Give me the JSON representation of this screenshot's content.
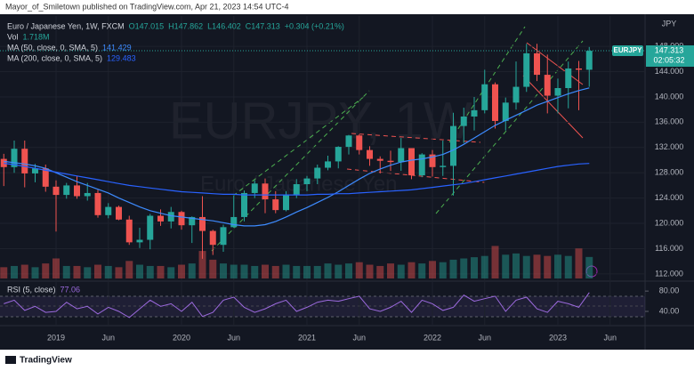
{
  "header": {
    "publisher": "Mayor_of_Smiletown published on TradingView.com, Apr 21, 2023 14:54 UTC-4",
    "brand": "TradingView"
  },
  "chart_data": {
    "type": "candlestick",
    "title": "Euro / Japanese Yen, 1W, FXCM",
    "legend_ohlc": [
      "O147.015",
      "H147.862",
      "L146.402",
      "C147.313",
      "+0.304 (+0.21%)"
    ],
    "watermark": "EURJPY, 1W",
    "watermark_subtitle": "Euro / Japanese Yen",
    "currency": "JPY",
    "symbol_tag": "EURJPY",
    "last_price": 147.313,
    "countdown": "02:05:32",
    "up_color": "#26a69a",
    "down_color": "#ef5350",
    "grid": true,
    "x": [
      "2018-08",
      "2018-09",
      "2018-10",
      "2018-11",
      "2018-12",
      "2019-01",
      "2019-02",
      "2019-03",
      "2019-04",
      "2019-05",
      "2019-06",
      "2019-07",
      "2019-08",
      "2019-09",
      "2019-10",
      "2019-11",
      "2019-12",
      "2020-01",
      "2020-02",
      "2020-03",
      "2020-04",
      "2020-05",
      "2020-06",
      "2020-07",
      "2020-08",
      "2020-09",
      "2020-10",
      "2020-11",
      "2020-12",
      "2021-01",
      "2021-02",
      "2021-03",
      "2021-04",
      "2021-05",
      "2021-06",
      "2021-07",
      "2021-08",
      "2021-09",
      "2021-10",
      "2021-11",
      "2021-12",
      "2022-01",
      "2022-02",
      "2022-03",
      "2022-04",
      "2022-05",
      "2022-06",
      "2022-07",
      "2022-08",
      "2022-09",
      "2022-10",
      "2022-11",
      "2022-12",
      "2023-01",
      "2023-02",
      "2023-03",
      "2023-04"
    ],
    "open": [
      130.2,
      128.9,
      131.8,
      127.9,
      128.7,
      125.8,
      124.5,
      126.0,
      124.3,
      124.8,
      121.3,
      122.6,
      120.6,
      117.0,
      117.4,
      121.2,
      120.3,
      121.8,
      119.7,
      121.0,
      118.8,
      116.6,
      119.4,
      121.0,
      124.8,
      126.3,
      123.8,
      122.1,
      124.5,
      126.2,
      127.1,
      128.8,
      129.8,
      132.1,
      133.9,
      131.6,
      130.2,
      129.9,
      129.7,
      131.9,
      127.6,
      130.9,
      128.9,
      129.1,
      135.4,
      136.9,
      137.9,
      142.0,
      136.2,
      139.1,
      141.6,
      146.9,
      143.5,
      140.2,
      141.4,
      144.5,
      144.3
    ],
    "high": [
      131.0,
      133.1,
      133.1,
      129.4,
      129.3,
      126.8,
      126.4,
      127.5,
      126.4,
      125.3,
      123.2,
      122.8,
      121.2,
      119.3,
      121.5,
      122.2,
      122.6,
      122.0,
      121.1,
      124.3,
      119.0,
      119.8,
      124.4,
      125.2,
      126.8,
      127.1,
      125.1,
      125.1,
      127.0,
      127.5,
      129.3,
      130.7,
      132.2,
      134.0,
      134.1,
      132.2,
      130.6,
      131.5,
      133.5,
      131.9,
      131.1,
      131.6,
      133.1,
      137.5,
      138.3,
      140.0,
      144.3,
      142.3,
      139.9,
      145.6,
      148.4,
      148.4,
      146.7,
      142.9,
      145.6,
      145.7,
      147.9
    ],
    "low": [
      125.9,
      128.0,
      125.7,
      126.5,
      125.0,
      118.7,
      123.9,
      123.9,
      123.6,
      120.9,
      120.8,
      120.5,
      116.6,
      116.1,
      115.9,
      119.6,
      119.2,
      119.0,
      116.9,
      114.4,
      115.0,
      115.5,
      119.3,
      120.3,
      124.0,
      121.6,
      121.6,
      121.9,
      124.0,
      125.1,
      126.2,
      128.4,
      128.7,
      130.9,
      130.9,
      129.1,
      127.9,
      128.3,
      128.3,
      127.0,
      127.3,
      127.4,
      127.5,
      124.4,
      132.7,
      134.7,
      137.4,
      135.0,
      134.7,
      138.0,
      140.8,
      142.5,
      137.4,
      137.4,
      138.2,
      137.9,
      141.6
    ],
    "close": [
      128.9,
      131.8,
      127.9,
      128.7,
      125.8,
      124.5,
      126.0,
      124.3,
      124.8,
      121.3,
      122.6,
      120.6,
      117.0,
      117.4,
      121.2,
      120.3,
      121.8,
      119.7,
      121.0,
      118.8,
      116.6,
      119.4,
      121.0,
      124.8,
      126.3,
      123.8,
      122.1,
      124.5,
      126.2,
      127.1,
      128.8,
      129.8,
      132.1,
      133.9,
      131.6,
      130.2,
      129.9,
      129.7,
      131.9,
      127.6,
      130.9,
      128.9,
      129.1,
      135.4,
      136.9,
      137.9,
      142.0,
      136.2,
      139.1,
      141.6,
      146.9,
      143.5,
      140.2,
      141.4,
      144.5,
      144.3,
      147.3
    ],
    "ylim": [
      111,
      152.8
    ],
    "yticks": [
      {
        "value": 112,
        "label": "112.000"
      },
      {
        "value": 116,
        "label": "116.000"
      },
      {
        "value": 120,
        "label": "120.000"
      },
      {
        "value": 124,
        "label": "124.000"
      },
      {
        "value": 128,
        "label": "128.000"
      },
      {
        "value": 132,
        "label": "132.000"
      },
      {
        "value": 136,
        "label": "136.000"
      },
      {
        "value": 140,
        "label": "140.000"
      },
      {
        "value": 144,
        "label": "144.000"
      },
      {
        "value": 148,
        "label": "148.000"
      }
    ],
    "xticks": [
      {
        "value": "2019-01",
        "label": "2019"
      },
      {
        "value": "2019-06",
        "label": "Jun"
      },
      {
        "value": "2020-01",
        "label": "2020"
      },
      {
        "value": "2020-06",
        "label": "Jun"
      },
      {
        "value": "2021-01",
        "label": "2021"
      },
      {
        "value": "2021-06",
        "label": "Jun"
      },
      {
        "value": "2022-01",
        "label": "2022"
      },
      {
        "value": "2022-06",
        "label": "Jun"
      },
      {
        "value": "2023-01",
        "label": "2023"
      },
      {
        "value": "2023-06",
        "label": "Jun"
      }
    ],
    "overlays": [
      {
        "name": "MA (50, close, 0, SMA, 5)",
        "color": "#3d8bff",
        "values": [
          129.8,
          129.6,
          129.4,
          129.1,
          128.7,
          128.0,
          127.3,
          126.6,
          126.0,
          125.4,
          124.8,
          124.0,
          123.3,
          122.6,
          122.0,
          121.6,
          121.2,
          121.0,
          120.8,
          120.6,
          120.4,
          120.1,
          119.8,
          119.6,
          119.6,
          119.8,
          120.3,
          121.0,
          121.8,
          122.5,
          123.3,
          124.1,
          125.0,
          126.0,
          127.0,
          127.9,
          128.6,
          129.2,
          129.7,
          130.0,
          130.2,
          130.5,
          130.9,
          131.6,
          132.5,
          133.5,
          134.5,
          135.5,
          136.3,
          137.1,
          137.9,
          138.7,
          139.3,
          139.9,
          140.5,
          141.0,
          141.429
        ]
      },
      {
        "name": "MA (200, close, 0, SMA, 5)",
        "color": "#2962ff",
        "values": [
          129.5,
          129.3,
          129.0,
          128.7,
          128.4,
          128.1,
          127.8,
          127.5,
          127.2,
          126.9,
          126.6,
          126.3,
          126.0,
          125.8,
          125.6,
          125.4,
          125.2,
          125.0,
          124.9,
          124.8,
          124.7,
          124.6,
          124.6,
          124.5,
          124.5,
          124.5,
          124.5,
          124.5,
          124.5,
          124.5,
          124.6,
          124.6,
          124.7,
          124.7,
          124.8,
          124.9,
          125.0,
          125.1,
          125.2,
          125.3,
          125.5,
          125.7,
          125.9,
          126.1,
          126.3,
          126.6,
          126.9,
          127.2,
          127.5,
          127.8,
          128.1,
          128.4,
          128.7,
          129.0,
          129.2,
          129.4,
          129.483
        ]
      }
    ],
    "volume": {
      "name": "Vol",
      "value_label": "1.718M",
      "ylim": [
        0,
        3.2
      ],
      "values": [
        0.9,
        1.0,
        1.1,
        0.9,
        1.2,
        1.6,
        1.0,
        1.0,
        0.9,
        1.1,
        1.0,
        0.9,
        1.4,
        1.1,
        1.0,
        1.0,
        0.9,
        1.1,
        1.2,
        2.2,
        1.5,
        1.2,
        1.1,
        1.1,
        1.0,
        1.1,
        1.0,
        1.1,
        1.0,
        1.0,
        1.0,
        1.2,
        1.1,
        1.2,
        1.3,
        1.1,
        1.0,
        1.2,
        1.1,
        1.3,
        1.2,
        1.4,
        1.3,
        1.5,
        1.6,
        1.7,
        1.8,
        2.6,
        1.9,
        2.0,
        1.8,
        1.9,
        1.8,
        1.9,
        1.8,
        2.4,
        1.718
      ]
    },
    "rsi": {
      "name": "RSI (5, close)",
      "color": "#9c6ade",
      "ylim": [
        19,
        96
      ],
      "yticks": [
        {
          "value": 80,
          "label": "80.00"
        },
        {
          "value": 40,
          "label": "40.00"
        }
      ],
      "values": [
        55,
        62,
        42,
        50,
        38,
        40,
        58,
        45,
        50,
        35,
        48,
        40,
        28,
        45,
        62,
        50,
        55,
        40,
        58,
        30,
        38,
        62,
        68,
        48,
        38,
        45,
        55,
        62,
        40,
        48,
        58,
        62,
        60,
        65,
        70,
        45,
        40,
        48,
        60,
        38,
        62,
        55,
        42,
        48,
        72,
        60,
        65,
        70,
        40,
        62,
        68,
        45,
        38,
        60,
        55,
        48,
        77.06
      ]
    }
  }
}
